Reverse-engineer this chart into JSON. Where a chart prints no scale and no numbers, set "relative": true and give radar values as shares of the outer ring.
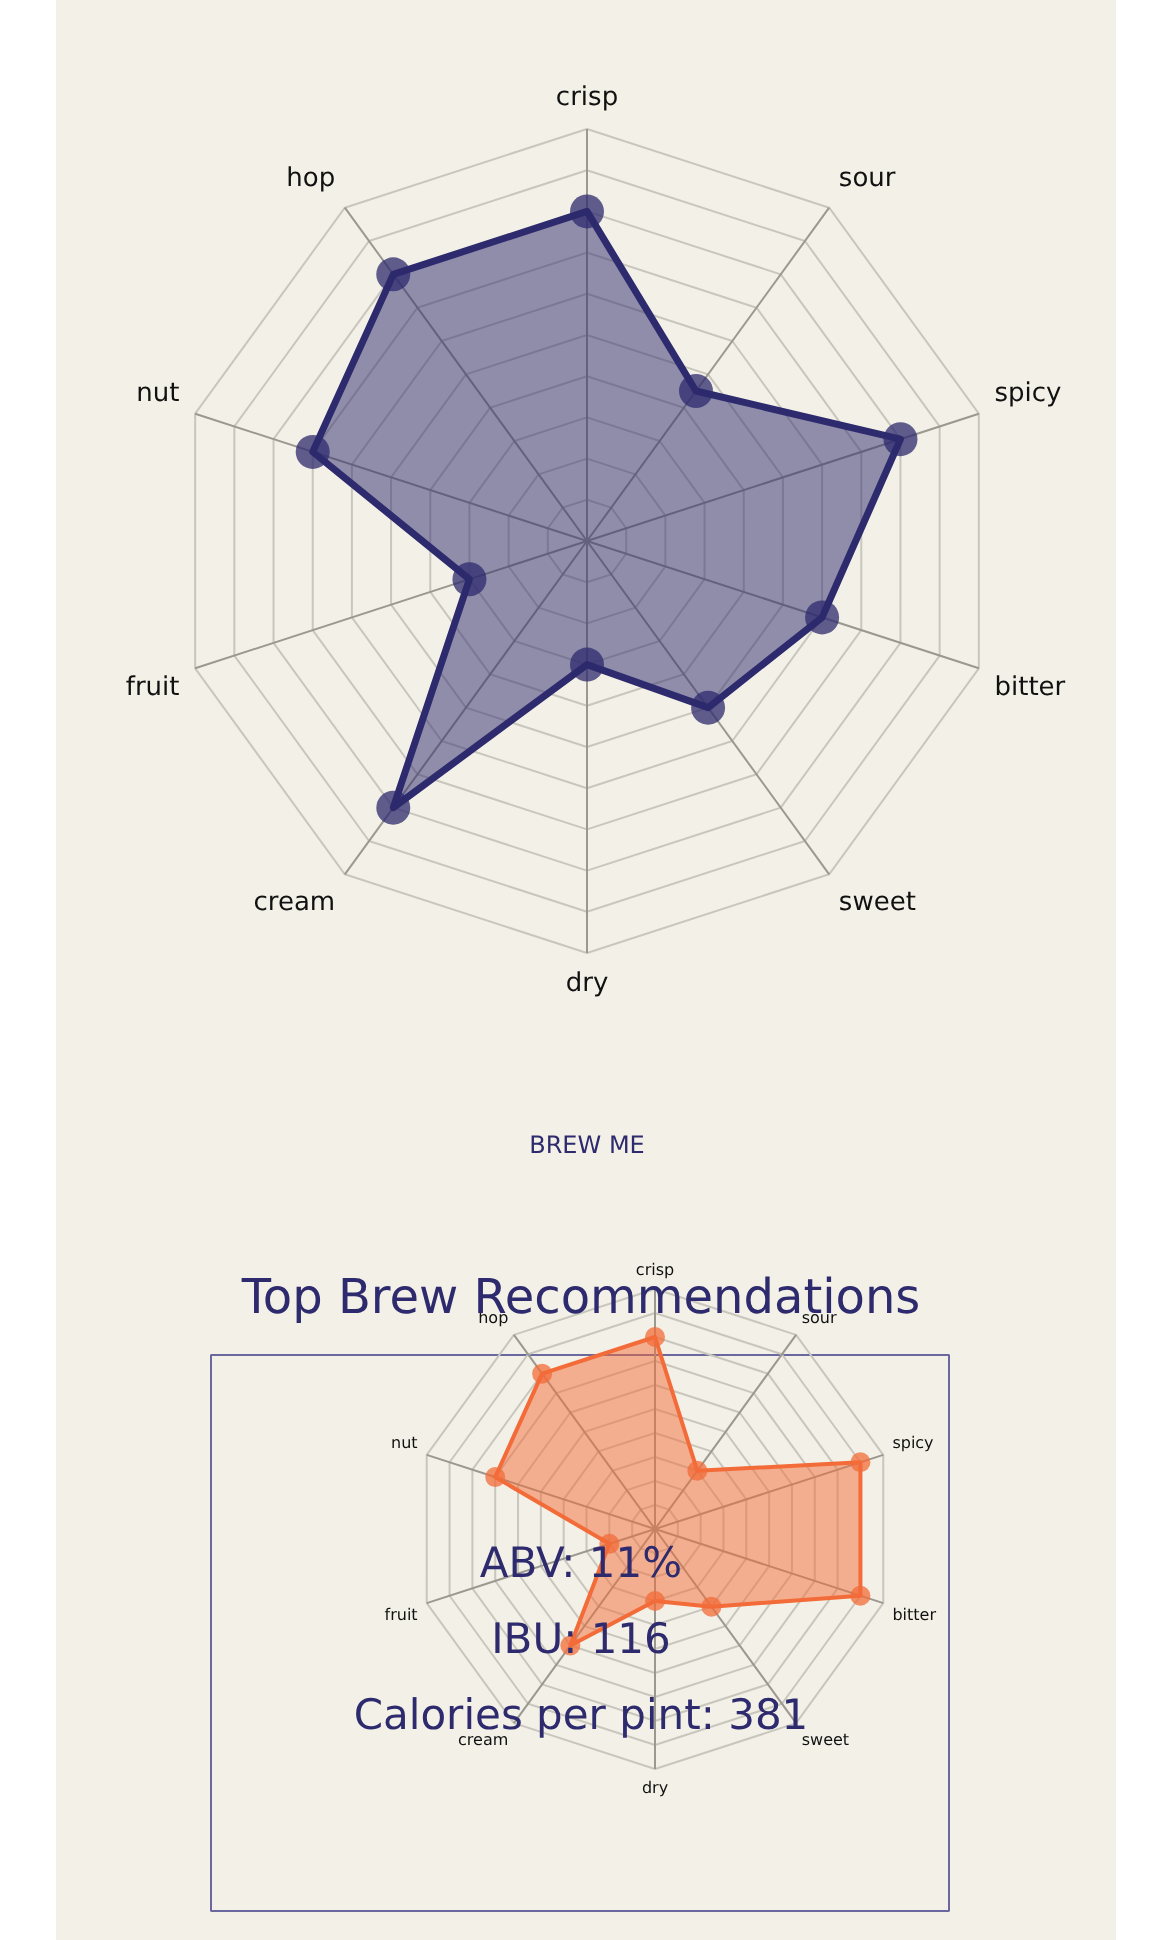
{
  "chart_data": [
    {
      "type": "radar",
      "relative": true,
      "grid": true,
      "marker": "circle",
      "categories": [
        "crisp",
        "sour",
        "spicy",
        "bitter",
        "sweet",
        "dry",
        "cream",
        "fruit",
        "nut",
        "hop"
      ],
      "series": [
        {
          "color": "#2e2a6e",
          "values": [
            0.8,
            0.45,
            0.8,
            0.6,
            0.5,
            0.3,
            0.8,
            0.3,
            0.7,
            0.8
          ]
        }
      ],
      "annotations": [
        "BREW ME"
      ]
    },
    {
      "type": "radar",
      "relative": true,
      "grid": true,
      "marker": "circle",
      "title": "Top Brew Recommendations",
      "categories": [
        "crisp",
        "sour",
        "spicy",
        "bitter",
        "sweet",
        "dry",
        "cream",
        "fruit",
        "nut",
        "hop"
      ],
      "series": [
        {
          "color": "#f26b38",
          "values": [
            0.8,
            0.3,
            0.9,
            0.9,
            0.4,
            0.3,
            0.6,
            0.2,
            0.7,
            0.8
          ]
        }
      ],
      "annotations": [
        "ABV: 11%",
        "IBU: 116",
        "Calories per pint: 381"
      ]
    }
  ]
}
